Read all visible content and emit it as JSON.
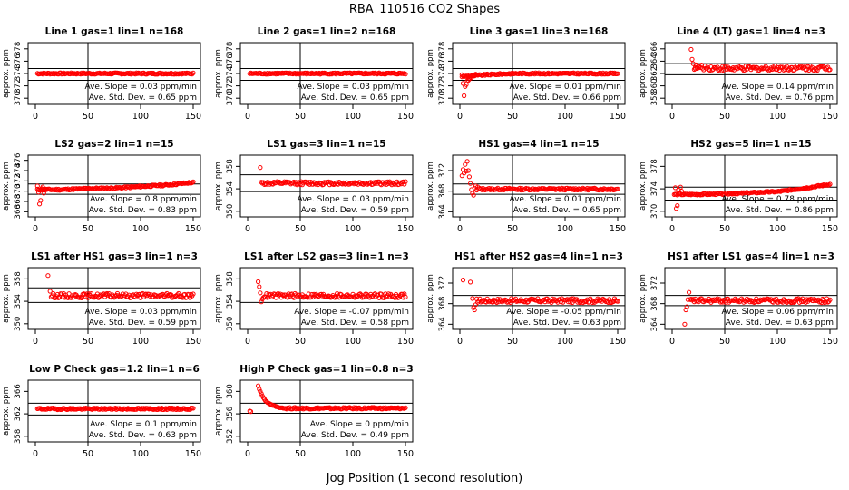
{
  "title": "RBA_110516  CO2 Shapes",
  "xlabel": "Jog Position (1 second resolution)",
  "ylabel": "approx. ppm",
  "colors": {
    "points": "#ff0000",
    "axes": "#000000",
    "background": "#ffffff"
  },
  "chart_data": [
    {
      "type": "scatter",
      "title": "Line 1 gas=1 lin=1 n=168",
      "xlim": [
        0,
        150
      ],
      "ylim": [
        369,
        379
      ],
      "xticks": [
        0,
        50,
        100,
        150
      ],
      "yticks": [
        370,
        372,
        374,
        376,
        378
      ],
      "vline": 50,
      "hlines": [
        372.9,
        374.8
      ],
      "base": [
        374,
        374,
        374,
        374,
        374,
        374,
        374
      ],
      "spread": 0.12,
      "slope_text": "Ave. Slope = 0.03  ppm/min",
      "std_text": "Ave. Std. Dev. = 0.65  ppm"
    },
    {
      "type": "scatter",
      "title": "Line 2 gas=1 lin=2 n=168",
      "xlim": [
        0,
        150
      ],
      "ylim": [
        369,
        379
      ],
      "xticks": [
        0,
        50,
        100,
        150
      ],
      "yticks": [
        370,
        372,
        374,
        376,
        378
      ],
      "vline": 50,
      "hlines": [
        372.9,
        374.8
      ],
      "base": [
        374,
        374,
        374,
        374,
        374,
        374,
        374
      ],
      "spread": 0.12,
      "slope_text": "Ave. Slope = 0.03  ppm/min",
      "std_text": "Ave. Std. Dev. = 0.65  ppm"
    },
    {
      "type": "scatter",
      "title": "Line 3 gas=1 lin=3 n=168",
      "xlim": [
        0,
        150
      ],
      "ylim": [
        369,
        379
      ],
      "xticks": [
        0,
        50,
        100,
        150
      ],
      "yticks": [
        370,
        372,
        374,
        376,
        378
      ],
      "vline": 50,
      "hlines": [
        372.9,
        374.8
      ],
      "base": [
        373.5,
        373.8,
        374,
        374,
        374,
        374,
        374
      ],
      "spread": 0.12,
      "extra": [
        [
          2,
          373.8
        ],
        [
          3,
          372.4
        ],
        [
          4,
          370.4
        ],
        [
          5,
          371.9
        ],
        [
          6,
          372.2
        ],
        [
          7,
          372.8
        ],
        [
          8,
          372.9
        ],
        [
          9,
          373.1
        ],
        [
          10,
          373.4
        ],
        [
          11,
          373.3
        ],
        [
          12,
          373.6
        ],
        [
          13,
          373.6
        ],
        [
          14,
          373.7
        ],
        [
          15,
          373.9
        ]
      ],
      "slope_text": "Ave. Slope = 0.01  ppm/min",
      "std_text": "Ave. Std. Dev. = 0.66  ppm"
    },
    {
      "type": "scatter",
      "title": "Line 4 (LT) gas=1 lin=4 n=3",
      "xlim": [
        0,
        150
      ],
      "ylim": [
        357,
        367
      ],
      "xticks": [
        0,
        50,
        100,
        150
      ],
      "yticks": [
        358,
        360,
        362,
        364,
        366
      ],
      "vline": 50,
      "hlines": [
        361.8,
        363.6
      ],
      "start": 21,
      "base": [
        363,
        363,
        362.8,
        362.8,
        362.9,
        362.9,
        362.9
      ],
      "spread": 0.4,
      "extra": [
        [
          18,
          365.9
        ],
        [
          19,
          364.3
        ],
        [
          20,
          363.6
        ],
        [
          22,
          362.8
        ],
        [
          23,
          363.4
        ],
        [
          24,
          363
        ]
      ],
      "slope_text": "Ave. Slope = 0.14  ppm/min",
      "std_text": "Ave. Std. Dev. = 0.76  ppm"
    },
    {
      "type": "scatter",
      "title": "LS2 gas=2 lin=1 n=15",
      "xlim": [
        0,
        150
      ],
      "ylim": [
        365,
        377
      ],
      "xticks": [
        0,
        50,
        100,
        150
      ],
      "yticks": [
        366,
        368,
        370,
        372,
        374,
        376
      ],
      "vline": 50,
      "hlines": [
        369.4,
        371.4
      ],
      "base": [
        370.3,
        370.3,
        370.5,
        370.6,
        370.9,
        371.2,
        371.7
      ],
      "spread": 0.15,
      "extra": [
        [
          2,
          371
        ],
        [
          3,
          369.8
        ],
        [
          4,
          367.5
        ],
        [
          5,
          368.2
        ],
        [
          6,
          370.5
        ],
        [
          7,
          370.8
        ],
        [
          8,
          369.6
        ],
        [
          9,
          370.2
        ],
        [
          10,
          370.4
        ]
      ],
      "slope_text": "Ave. Slope = 0.8  ppm/min",
      "std_text": "Ave. Std. Dev. = 0.83  ppm"
    },
    {
      "type": "scatter",
      "title": "LS1 gas=3 lin=1 n=15",
      "xlim": [
        0,
        150
      ],
      "ylim": [
        349,
        360
      ],
      "xticks": [
        0,
        50,
        100,
        150
      ],
      "yticks": [
        350,
        354,
        358
      ],
      "vline": 50,
      "hlines": [
        353.5,
        356.5
      ],
      "start": 15,
      "base": [
        355,
        355,
        355,
        355,
        355,
        355,
        355
      ],
      "spread": 0.3,
      "extra": [
        [
          12,
          357.8
        ],
        [
          13,
          355.2
        ],
        [
          14,
          355
        ]
      ],
      "slope_text": "Ave. Slope = 0.03  ppm/min",
      "std_text": "Ave. Std. Dev. = 0.59  ppm"
    },
    {
      "type": "scatter",
      "title": "HS1 gas=4 lin=1 n=15",
      "xlim": [
        0,
        150
      ],
      "ylim": [
        363,
        375
      ],
      "xticks": [
        0,
        50,
        100,
        150
      ],
      "yticks": [
        364,
        368,
        372
      ],
      "vline": 50,
      "hlines": [
        367.4,
        369.4
      ],
      "start": 18,
      "base": [
        368.4,
        368.4,
        368.4,
        368.4,
        368.4,
        368.4,
        368.4
      ],
      "spread": 0.2,
      "extra": [
        [
          2,
          371
        ],
        [
          3,
          372.2
        ],
        [
          4,
          371.5
        ],
        [
          5,
          373.2
        ],
        [
          6,
          371.9
        ],
        [
          7,
          373.8
        ],
        [
          8,
          372
        ],
        [
          9,
          370.8
        ],
        [
          10,
          369.5
        ],
        [
          11,
          368.3
        ],
        [
          12,
          367.6
        ],
        [
          13,
          367.2
        ],
        [
          14,
          368.6
        ],
        [
          15,
          369
        ],
        [
          16,
          368.2
        ],
        [
          17,
          368.8
        ]
      ],
      "slope_text": "Ave. Slope = 0.01  ppm/min",
      "std_text": "Ave. Std. Dev. = 0.65  ppm"
    },
    {
      "type": "scatter",
      "title": "HS2 gas=5 lin=1 n=15",
      "xlim": [
        0,
        150
      ],
      "ylim": [
        369,
        380
      ],
      "xticks": [
        0,
        50,
        100,
        150
      ],
      "yticks": [
        370,
        374,
        378
      ],
      "vline": 50,
      "hlines": [
        372,
        374.3
      ],
      "base": [
        373,
        373,
        373.1,
        373.3,
        373.5,
        374.1,
        374.8
      ],
      "spread": 0.12,
      "extra": [
        [
          3,
          374.2
        ],
        [
          4,
          370.5
        ],
        [
          5,
          371
        ],
        [
          6,
          373.8
        ],
        [
          7,
          373.2
        ],
        [
          8,
          374.3
        ],
        [
          9,
          373.6
        ]
      ],
      "slope_text": "Ave. Slope = 0.78  ppm/min",
      "std_text": "Ave. Std. Dev. = 0.86  ppm"
    },
    {
      "type": "scatter",
      "title": "LS1 after HS1 gas=3 lin=1 n=3",
      "xlim": [
        0,
        150
      ],
      "ylim": [
        349,
        360
      ],
      "xticks": [
        0,
        50,
        100,
        150
      ],
      "yticks": [
        350,
        354,
        358
      ],
      "vline": 50,
      "hlines": [
        353.8,
        356.4
      ],
      "start": 15,
      "base": [
        355,
        355,
        355,
        355,
        355,
        355,
        355
      ],
      "spread": 0.4,
      "extra": [
        [
          12,
          358.6
        ],
        [
          14,
          355.8
        ]
      ],
      "slope_text": "Ave. Slope = 0.03  ppm/min",
      "std_text": "Ave. Std. Dev. = 0.59  ppm"
    },
    {
      "type": "scatter",
      "title": "LS1 after LS2 gas=3 lin=1 n=3",
      "xlim": [
        0,
        150
      ],
      "ylim": [
        349,
        360
      ],
      "xticks": [
        0,
        50,
        100,
        150
      ],
      "yticks": [
        350,
        354,
        358
      ],
      "vline": 50,
      "hlines": [
        353.8,
        356.2
      ],
      "start": 15,
      "base": [
        355,
        355,
        355,
        355,
        355,
        355,
        355
      ],
      "spread": 0.4,
      "extra": [
        [
          10,
          357.5
        ],
        [
          11,
          356.6
        ],
        [
          12,
          355.5
        ],
        [
          13,
          353.9
        ],
        [
          14,
          354.4
        ]
      ],
      "slope_text": "Ave. Slope = -0.07  ppm/min",
      "std_text": "Ave. Std. Dev. = 0.58  ppm"
    },
    {
      "type": "scatter",
      "title": "HS1 after HS2 gas=4 lin=1 n=3",
      "xlim": [
        0,
        150
      ],
      "ylim": [
        363,
        375
      ],
      "xticks": [
        0,
        50,
        100,
        150
      ],
      "yticks": [
        364,
        368,
        372
      ],
      "vline": 50,
      "hlines": [
        367.6,
        369.6
      ],
      "start": 16,
      "base": [
        368.6,
        368.6,
        368.6,
        368.6,
        368.6,
        368.6,
        368.6
      ],
      "spread": 0.4,
      "extra": [
        [
          3,
          372.6
        ],
        [
          10,
          372.2
        ],
        [
          12,
          369
        ],
        [
          13,
          367.2
        ],
        [
          14,
          366.8
        ],
        [
          15,
          367.8
        ]
      ],
      "slope_text": "Ave. Slope = -0.05  ppm/min",
      "std_text": "Ave. Std. Dev. = 0.63  ppm"
    },
    {
      "type": "scatter",
      "title": "HS1 after LS1 gas=4 lin=1 n=3",
      "xlim": [
        0,
        150
      ],
      "ylim": [
        363,
        375
      ],
      "xticks": [
        0,
        50,
        100,
        150
      ],
      "yticks": [
        364,
        368,
        372
      ],
      "vline": 50,
      "hlines": [
        367.6,
        369.6
      ],
      "start": 17,
      "base": [
        368.6,
        368.6,
        368.6,
        368.6,
        368.6,
        368.6,
        368.6
      ],
      "spread": 0.4,
      "extra": [
        [
          12,
          364
        ],
        [
          13,
          366.8
        ],
        [
          14,
          367.4
        ],
        [
          15,
          368.8
        ],
        [
          16,
          370.2
        ]
      ],
      "slope_text": "Ave. Slope = 0.06  ppm/min",
      "std_text": "Ave. Std. Dev. = 0.63  ppm"
    },
    {
      "type": "scatter",
      "title": "Low P Check gas=1.2 lin=1 n=6",
      "xlim": [
        0,
        150
      ],
      "ylim": [
        357,
        368
      ],
      "xticks": [
        0,
        50,
        100,
        150
      ],
      "yticks": [
        358,
        362,
        366
      ],
      "vline": 50,
      "hlines": [
        361.8,
        363.9
      ],
      "base": [
        362.9,
        362.9,
        362.9,
        362.9,
        362.9,
        362.9,
        362.9
      ],
      "spread": 0.15,
      "slope_text": "Ave. Slope = 0.1  ppm/min",
      "std_text": "Ave. Std. Dev. = 0.63  ppm"
    },
    {
      "type": "scatter",
      "title": "High P Check gas=1 lin=0.8 n=3",
      "xlim": [
        0,
        150
      ],
      "ylim": [
        351,
        362
      ],
      "xticks": [
        0,
        50,
        100,
        150
      ],
      "yticks": [
        352,
        356,
        360
      ],
      "vline": 50,
      "hlines": [
        356.1,
        357.9
      ],
      "start": 35,
      "base": [
        357,
        357,
        357,
        357,
        357,
        357,
        357
      ],
      "spread": 0.15,
      "extra": [
        [
          2,
          356.5
        ],
        [
          3,
          356.4
        ],
        [
          10,
          361
        ],
        [
          11,
          360.4
        ],
        [
          12,
          360
        ],
        [
          13,
          359.6
        ],
        [
          14,
          359.2
        ],
        [
          15,
          358.9
        ],
        [
          16,
          358.6
        ],
        [
          17,
          358.3
        ],
        [
          18,
          358.2
        ],
        [
          19,
          358
        ],
        [
          20,
          357.9
        ],
        [
          21,
          357.8
        ],
        [
          22,
          357.7
        ],
        [
          23,
          357.6
        ],
        [
          24,
          357.5
        ],
        [
          25,
          357.5
        ],
        [
          26,
          357.4
        ],
        [
          27,
          357.3
        ],
        [
          28,
          357.3
        ],
        [
          29,
          357.2
        ],
        [
          30,
          357.1
        ],
        [
          31,
          357.1
        ],
        [
          32,
          357.1
        ],
        [
          33,
          357.1
        ],
        [
          34,
          357
        ]
      ],
      "slope_text": "Ave. Slope = 0  ppm/min",
      "std_text": "Ave. Std. Dev. = 0.49  ppm"
    }
  ]
}
